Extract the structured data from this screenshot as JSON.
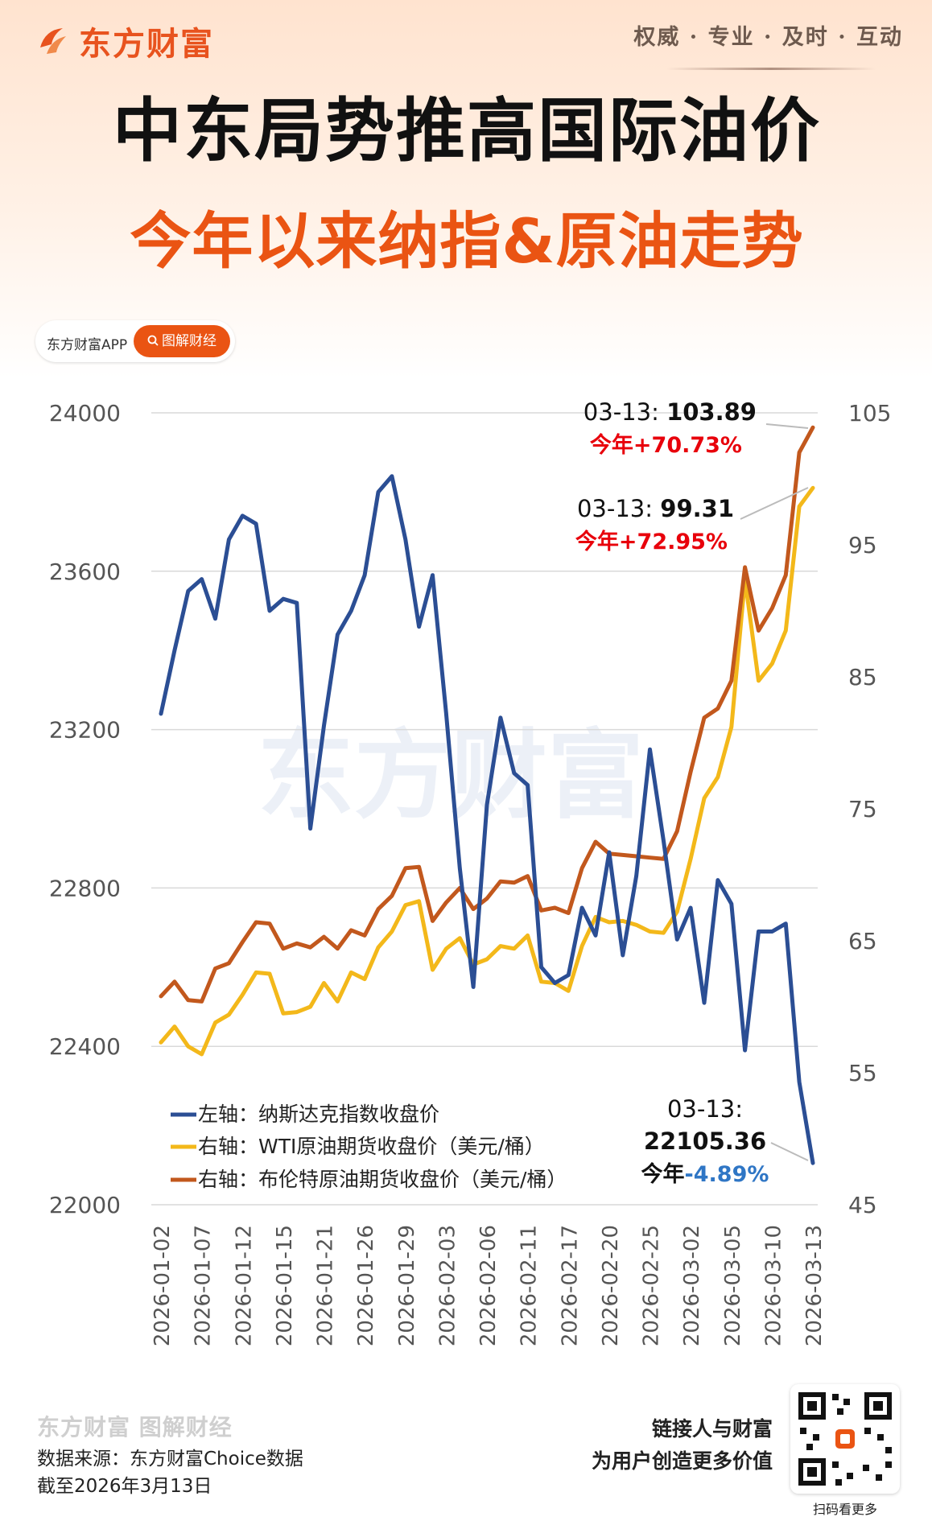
{
  "header": {
    "brand": "东方财富",
    "slogan": "权威 · 专业 · 及时 · 互动",
    "title": "中东局势推高国际油价",
    "subtitle": "今年以来纳指&原油走势",
    "app_name": "东方财富APP",
    "tag": "图解财经"
  },
  "colors": {
    "accent": "#ea5413",
    "nasdaq": "#2b4e94",
    "wti": "#f3b81a",
    "brent": "#c2581d",
    "up": "#e8000b",
    "down": "#2f76c5"
  },
  "chart_data": {
    "type": "line",
    "left_axis": {
      "ticks": [
        22000,
        22400,
        22800,
        23200,
        23600,
        24000
      ],
      "ylim": [
        22000,
        24000
      ]
    },
    "right_axis": {
      "ticks": [
        45,
        55,
        65,
        75,
        85,
        95,
        105
      ],
      "ylim": [
        45,
        105
      ]
    },
    "x_ticks": [
      "2026-01-02",
      "2026-01-07",
      "2026-01-12",
      "2026-01-15",
      "2026-01-21",
      "2026-01-26",
      "2026-01-29",
      "2026-02-03",
      "2026-02-06",
      "2026-02-11",
      "2026-02-17",
      "2026-02-20",
      "2026-02-25",
      "2026-03-02",
      "2026-03-05",
      "2026-03-10",
      "2026-03-13"
    ],
    "n_points": 49,
    "series": [
      {
        "name": "左轴：纳斯达克指数收盘价",
        "axis": "left",
        "color": "#2b4e94",
        "values": [
          23240,
          23400,
          23550,
          23580,
          23480,
          23680,
          23740,
          23720,
          23500,
          23530,
          23520,
          22950,
          23210,
          23440,
          23500,
          23590,
          23800,
          23840,
          23680,
          23460,
          23590,
          23240,
          22850,
          22550,
          23010,
          23230,
          23090,
          23060,
          22600,
          22560,
          22580,
          22750,
          22680,
          22890,
          22630,
          22830,
          23150,
          22920,
          22670,
          22750,
          22510,
          22820,
          22760,
          22390,
          22690,
          22690,
          22710,
          22310,
          22105.36
        ]
      },
      {
        "name": "右轴：WTI原油期货收盘价（美元/桶）",
        "axis": "right",
        "color": "#f3b81a",
        "values": [
          57.3,
          58.5,
          57.0,
          56.4,
          58.8,
          59.4,
          60.9,
          62.6,
          62.5,
          59.5,
          59.6,
          60.0,
          61.8,
          60.4,
          62.6,
          62.1,
          64.5,
          65.7,
          67.7,
          68.0,
          62.8,
          64.4,
          65.2,
          63.2,
          63.6,
          64.6,
          64.4,
          65.4,
          61.9,
          61.8,
          61.2,
          64.6,
          66.8,
          66.4,
          66.5,
          66.2,
          65.7,
          65.6,
          67.2,
          71.2,
          75.8,
          77.4,
          81.2,
          92.4,
          84.7,
          86.0,
          88.5,
          97.9,
          99.31
        ]
      },
      {
        "name": "右轴：布伦特原油期货收盘价（美元/桶）",
        "axis": "right",
        "color": "#c2581d",
        "values": [
          60.8,
          61.9,
          60.5,
          60.4,
          62.9,
          63.3,
          64.9,
          66.4,
          66.3,
          64.4,
          64.8,
          64.5,
          65.3,
          64.4,
          65.8,
          65.4,
          67.4,
          68.4,
          70.5,
          70.6,
          66.5,
          67.9,
          69.0,
          67.4,
          68.2,
          69.5,
          69.4,
          69.9,
          67.3,
          67.5,
          67.1,
          70.5,
          72.5,
          71.6,
          71.5,
          71.4,
          71.3,
          71.2,
          73.3,
          77.8,
          81.9,
          82.6,
          84.7,
          93.3,
          88.5,
          90.2,
          92.7,
          102.0,
          103.89
        ]
      }
    ],
    "annotations": {
      "brent": {
        "date": "03-13",
        "value": "103.89",
        "ytd": "今年+70.73%"
      },
      "wti": {
        "date": "03-13",
        "value": "99.31",
        "ytd": "今年+72.95%"
      },
      "nasdaq": {
        "date": "03-13:",
        "value": "22105.36",
        "ytd_prefix": "今年",
        "ytd": "-4.89%"
      }
    }
  },
  "watermark": "东方财富",
  "footer": {
    "brand": "东方财富 图解财经",
    "source": "数据来源：东方财富Choice数据",
    "date": "截至2026年3月13日",
    "right_line1": "链接人与财富",
    "right_line2": "为用户创造更多价值",
    "qr_caption": "扫码看更多"
  }
}
